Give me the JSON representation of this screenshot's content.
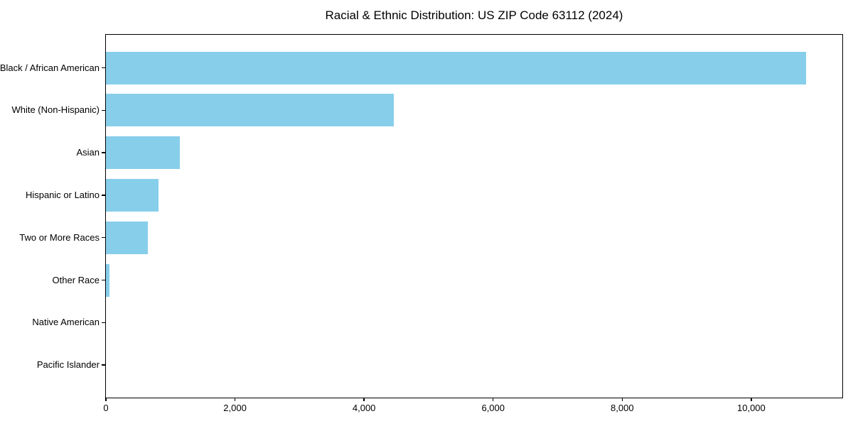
{
  "chart_data": {
    "type": "bar",
    "orientation": "horizontal",
    "title": "Racial & Ethnic Distribution: US ZIP Code 63112 (2024)",
    "categories": [
      "Black / African American",
      "White (Non-Hispanic)",
      "Asian",
      "Hispanic or Latino",
      "Two or More Races",
      "Other Race",
      "Native American",
      "Pacific Islander"
    ],
    "values": [
      10850,
      4460,
      1150,
      810,
      645,
      55,
      0,
      0
    ],
    "xlabel": "",
    "ylabel": "",
    "xlim": [
      0,
      11400
    ],
    "x_ticks": [
      {
        "value": 0,
        "label": "0"
      },
      {
        "value": 2000,
        "label": "2,000"
      },
      {
        "value": 4000,
        "label": "4,000"
      },
      {
        "value": 6000,
        "label": "6,000"
      },
      {
        "value": 8000,
        "label": "8,000"
      },
      {
        "value": 10000,
        "label": "10,000"
      }
    ],
    "bar_color": "#87CEEB",
    "axis_color": "#000000",
    "background_color": "#ffffff",
    "grid": false,
    "legend_position": "none"
  }
}
